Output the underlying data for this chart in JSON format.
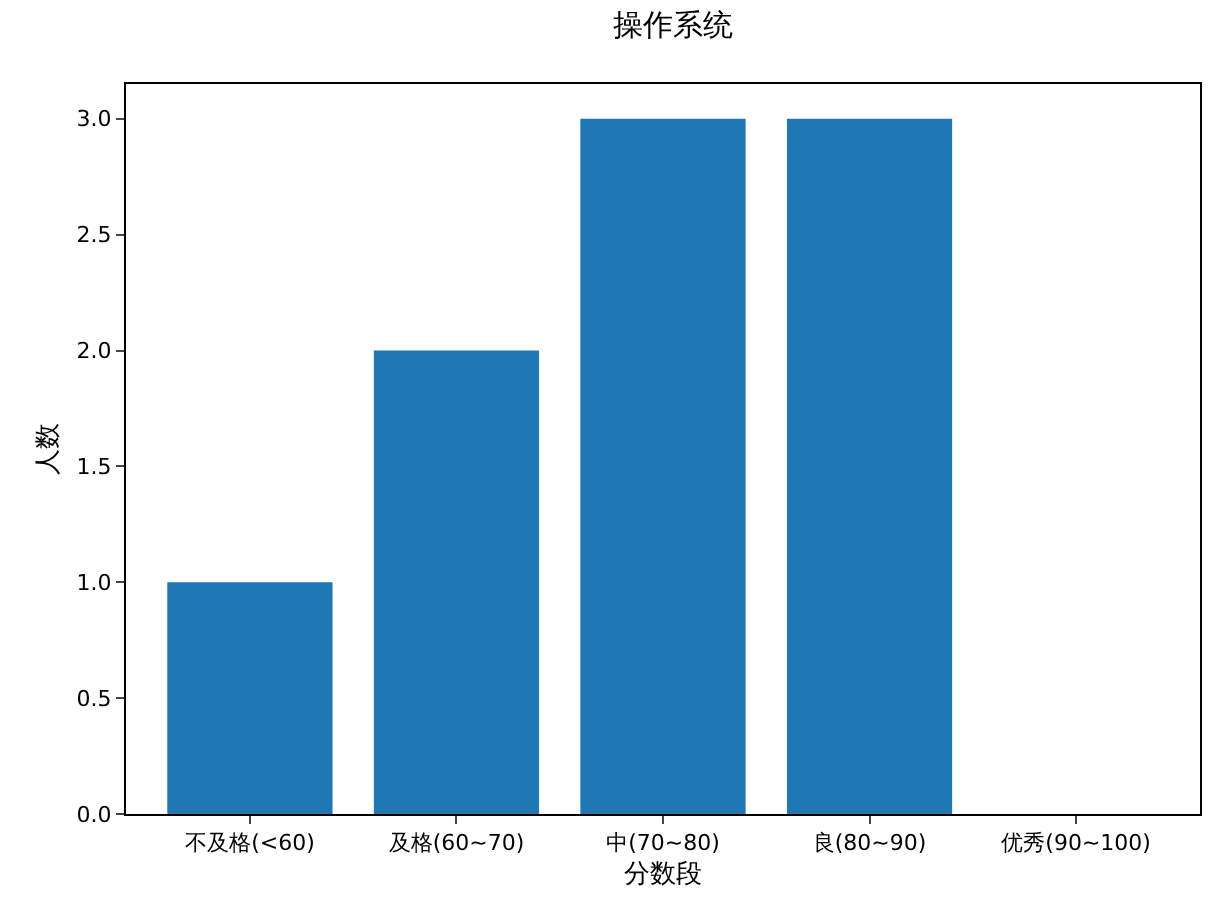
{
  "chart_data": {
    "type": "bar",
    "title": "操作系统",
    "xlabel": "分数段",
    "ylabel": "人数",
    "categories": [
      "不及格(<60)",
      "及格(60~70)",
      "中(70~80)",
      "良(80~90)",
      "优秀(90~100)"
    ],
    "values": [
      1,
      2,
      3,
      3,
      0
    ],
    "color": "#1f77b4",
    "ylim": [
      0,
      3.15
    ],
    "yticks": [
      {
        "value": 0,
        "label": "0.0"
      },
      {
        "value": 0.5,
        "label": "0.5"
      },
      {
        "value": 1,
        "label": "1.0"
      },
      {
        "value": 1.5,
        "label": "1.5"
      },
      {
        "value": 2,
        "label": "2.0"
      },
      {
        "value": 2.5,
        "label": "2.5"
      },
      {
        "value": 3,
        "label": "3.0"
      }
    ]
  }
}
